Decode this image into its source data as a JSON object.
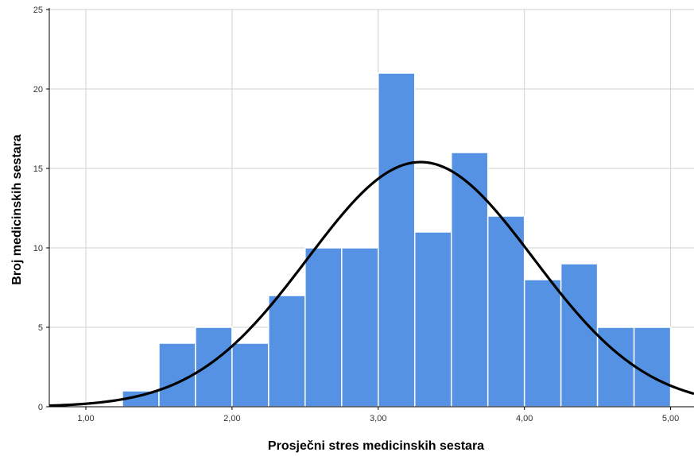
{
  "chart_data": {
    "type": "bar",
    "subtype": "histogram",
    "title": "",
    "xlabel": "Prosječni stres medicinskih sestara",
    "ylabel": "Broj medicinskih sestara",
    "xlim": [
      0.75,
      5.16
    ],
    "ylim": [
      0,
      25
    ],
    "x_ticks": [
      1,
      2,
      3,
      4,
      5
    ],
    "x_tick_labels": [
      "1,00",
      "2,00",
      "3,00",
      "4,00",
      "5,00"
    ],
    "y_ticks": [
      0,
      5,
      10,
      15,
      20,
      25
    ],
    "y_tick_labels": [
      "0",
      "5",
      "10",
      "15",
      "20",
      "25"
    ],
    "bins": [
      {
        "x0": 1.25,
        "x1": 1.5,
        "count": 1
      },
      {
        "x0": 1.5,
        "x1": 1.75,
        "count": 4
      },
      {
        "x0": 1.75,
        "x1": 2.0,
        "count": 5
      },
      {
        "x0": 2.0,
        "x1": 2.25,
        "count": 4
      },
      {
        "x0": 2.25,
        "x1": 2.5,
        "count": 7
      },
      {
        "x0": 2.5,
        "x1": 2.75,
        "count": 10
      },
      {
        "x0": 2.75,
        "x1": 3.0,
        "count": 10
      },
      {
        "x0": 3.0,
        "x1": 3.25,
        "count": 21
      },
      {
        "x0": 3.25,
        "x1": 3.5,
        "count": 11
      },
      {
        "x0": 3.5,
        "x1": 3.75,
        "count": 16
      },
      {
        "x0": 3.75,
        "x1": 4.0,
        "count": 12
      },
      {
        "x0": 4.0,
        "x1": 4.25,
        "count": 8
      },
      {
        "x0": 4.25,
        "x1": 4.5,
        "count": 9
      },
      {
        "x0": 4.5,
        "x1": 4.75,
        "count": 5
      },
      {
        "x0": 4.75,
        "x1": 5.0,
        "count": 5
      }
    ],
    "normal_curve": {
      "mean": 3.29,
      "sd": 0.772,
      "peak": 15.4
    },
    "grid": true,
    "legend": "none",
    "colors": {
      "bar_fill": "#5592e3",
      "bar_edge": "#ffffff",
      "curve": "#000000",
      "grid": "#d2d2d2",
      "axis": "#000000"
    }
  }
}
